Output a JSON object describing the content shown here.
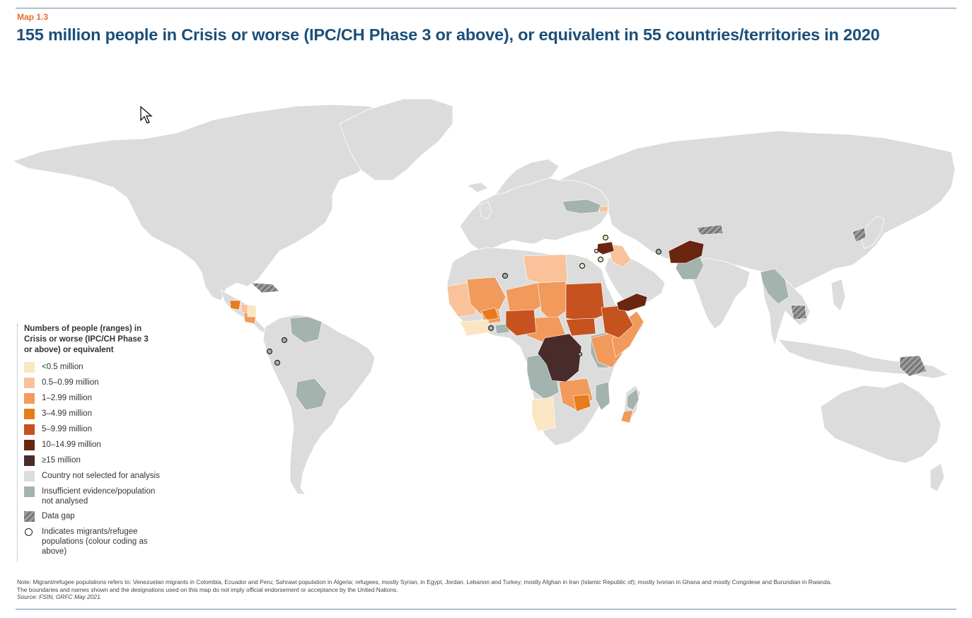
{
  "header": {
    "label": "Map 1.3",
    "title": "155 million people in Crisis or worse (IPC/CH Phase 3 or above), or equivalent in 55 countries/territories in 2020"
  },
  "legend": {
    "title": "Numbers of people (ranges) in Crisis or worse (IPC/CH Phase 3 or above) or equivalent",
    "items": [
      {
        "label": "<0.5 million",
        "color": "#fbe6c4"
      },
      {
        "label": "0.5–0.99 million",
        "color": "#f9c29a"
      },
      {
        "label": "1–2.99 million",
        "color": "#f19a5c"
      },
      {
        "label": "3–4.99 million",
        "color": "#e67c1b"
      },
      {
        "label": "5–9.99 million",
        "color": "#c5521f"
      },
      {
        "label": "10–14.99 million",
        "color": "#6a2610"
      },
      {
        "label": "≥15 million",
        "color": "#4a2b2b"
      },
      {
        "label": "Country not selected for analysis",
        "color": "#dcdcdc"
      },
      {
        "label": "Insufficient evidence/population not analysed",
        "color": "#a3b3ad"
      },
      {
        "label": "Data gap",
        "icon": "hatch-icon"
      },
      {
        "label": "Indicates migrants/refugee populations (colour coding as above)",
        "icon": "circle-icon"
      }
    ]
  },
  "notes": {
    "line1": "Note: Migrant/refugee populations refers to: Venezuelan migrants in Colombia, Ecuador and Peru; Sahrawi population in Algeria; refugees, mostly Syrian, in Egypt, Jordan, Lebanon and Turkey; mostly Afghan in Iran (Islamic Republic of); mostly Ivorian in Ghana and mostly Congolese and Burundian in Rwanda.",
    "line2": "The boundaries and names shown and the designations used on this map do not imply official endorsement or acceptance by the United Nations.",
    "source": "Source: FSIN, GRFC May 2021."
  },
  "colors": {
    "title": "#1b4f7a",
    "label": "#e3702a",
    "land": "#dcdcdc",
    "insufficient": "#a3b3ad"
  }
}
